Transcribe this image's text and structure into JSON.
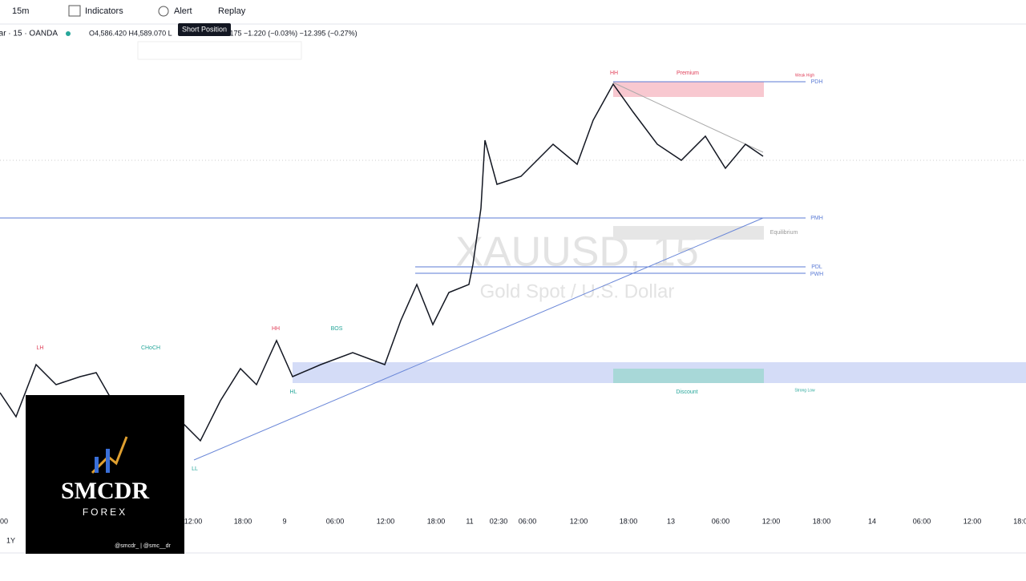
{
  "toolbar": {
    "interval": "15m",
    "indicators": "Indicators",
    "alert": "Alert",
    "replay": "Replay",
    "tooltip": "Short Position"
  },
  "legend": {
    "symbol": "ar · 15 · OANDA",
    "ohlc_left": "O4,586.420  H4,589.070  L",
    "ohlc_right": ".175  −1.220 (−0.03%)  −12.395 (−0.27%)"
  },
  "watermark": {
    "symbol": "XAUUSD, 15",
    "description": "Gold Spot / U.S. Dollar"
  },
  "annotations": {
    "hh": "HH",
    "premium": "Premium",
    "weak_high": "Weak High",
    "pdh": "PDH",
    "pmh": "PMH",
    "equilibrium": "Equilibrium",
    "pdl": "PDL",
    "pwh": "PWH",
    "discount": "Discount",
    "strong_low": "Strong Low",
    "lh": "LH",
    "choch": "CHoCH",
    "bos": "BOS",
    "hl": "HL",
    "ll": "LL",
    "hh2": "HH"
  },
  "x_axis": [
    "00",
    "12:00",
    "18:00",
    "9",
    "06:00",
    "12:00",
    "18:00",
    "11",
    "02:30",
    "06:00",
    "12:00",
    "18:00",
    "13",
    "06:00",
    "12:00",
    "18:00",
    "14",
    "06:00",
    "12:00",
    "18:0"
  ],
  "bottom_bar": {
    "range": "1Y"
  },
  "logo": {
    "name": "SMCDR",
    "sub": "FOREX",
    "handles": "@smcdr_ | @smc__dr"
  }
}
